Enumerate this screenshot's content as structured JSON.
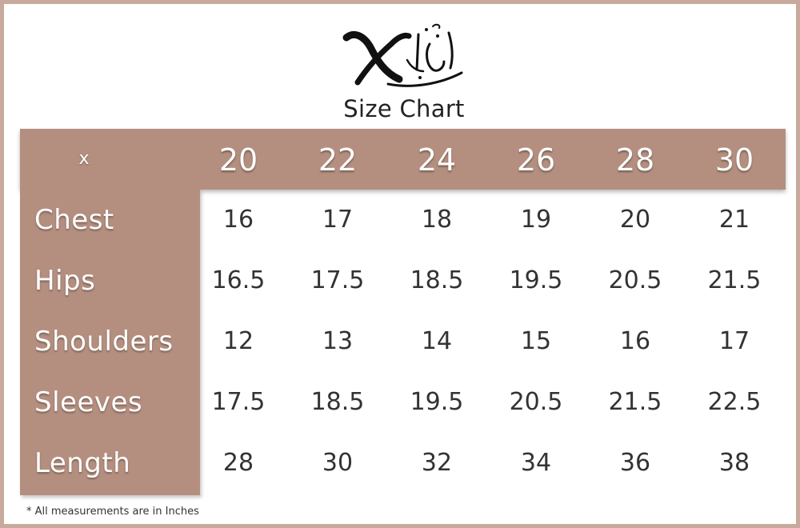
{
  "title": "Size Chart",
  "logo": {
    "icon": "calligraphy-logo-icon",
    "text": "الخيط"
  },
  "corner_label": "x",
  "sizes": [
    "20",
    "22",
    "24",
    "26",
    "28",
    "30"
  ],
  "rows": [
    {
      "label": "Chest",
      "values": [
        "16",
        "17",
        "18",
        "19",
        "20",
        "21"
      ]
    },
    {
      "label": "Hips",
      "values": [
        "16.5",
        "17.5",
        "18.5",
        "19.5",
        "20.5",
        "21.5"
      ]
    },
    {
      "label": "Shoulders",
      "values": [
        "12",
        "13",
        "14",
        "15",
        "16",
        "17"
      ]
    },
    {
      "label": "Sleeves",
      "values": [
        "17.5",
        "18.5",
        "19.5",
        "20.5",
        "21.5",
        "22.5"
      ]
    },
    {
      "label": "Length",
      "values": [
        "28",
        "30",
        "32",
        "34",
        "36",
        "38"
      ]
    }
  ],
  "footnote": "* All measurements are in Inches",
  "colors": {
    "accent": "#b48f7f",
    "border": "#c6aa9d",
    "text": "#333333"
  }
}
